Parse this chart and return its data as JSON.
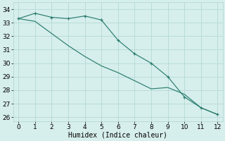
{
  "x": [
    0,
    1,
    2,
    3,
    4,
    5,
    6,
    7,
    8,
    9,
    10,
    11,
    12
  ],
  "line1": [
    33.3,
    33.7,
    33.4,
    33.3,
    33.5,
    33.2,
    31.7,
    30.7,
    30.0,
    29.0,
    27.5,
    26.7,
    26.2
  ],
  "line2": [
    33.3,
    33.1,
    32.2,
    31.3,
    30.5,
    29.8,
    29.3,
    28.7,
    28.1,
    28.2,
    27.7,
    26.7,
    26.2
  ],
  "line_color": "#2a7d6e",
  "bg_color": "#d6eeec",
  "grid_color": "#aed6d2",
  "xlabel": "Humidex (Indice chaleur)",
  "yticks": [
    26,
    27,
    28,
    29,
    30,
    31,
    32,
    33,
    34
  ],
  "xlim": [
    -0.3,
    12.3
  ],
  "ylim": [
    25.7,
    34.5
  ],
  "xlabel_fontsize": 7,
  "tick_fontsize": 6.5
}
